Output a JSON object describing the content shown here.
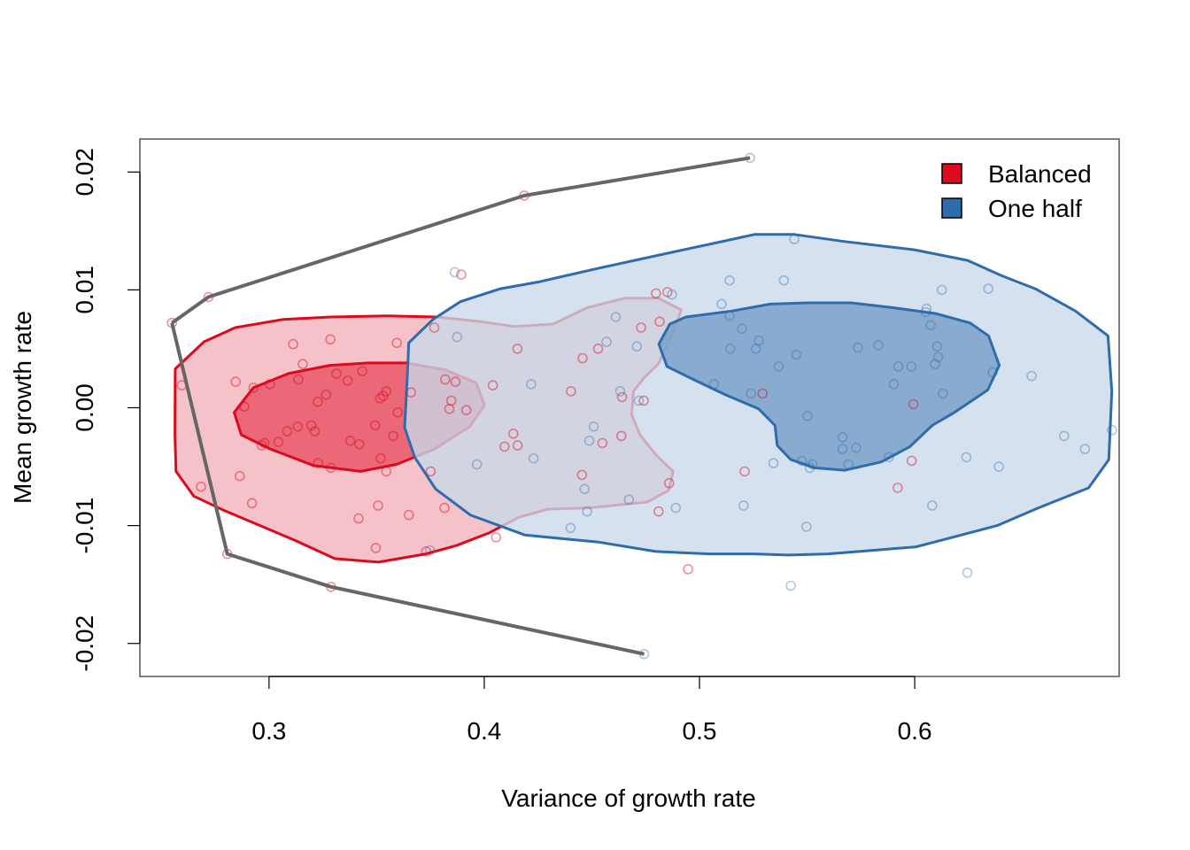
{
  "chart_data": {
    "type": "scatter",
    "title": "",
    "xlabel": "Variance of growth rate",
    "ylabel": "Mean growth rate",
    "xlim": [
      0.24,
      0.695
    ],
    "ylim": [
      -0.0228,
      0.0228
    ],
    "x_ticks": [
      0.3,
      0.4,
      0.5,
      0.6
    ],
    "x_tick_labels": [
      "0.3",
      "0.4",
      "0.5",
      "0.6"
    ],
    "y_ticks": [
      -0.02,
      -0.01,
      0.0,
      0.01,
      0.02
    ],
    "y_tick_labels": [
      "-0.02",
      "-0.01",
      "0.00",
      "0.01",
      "0.02"
    ],
    "grid": false,
    "legend_position": "top-right",
    "colors": {
      "balanced": "#DC0A1E",
      "balanced_fill": "#F6BFC6",
      "balanced_core": "#E8586A",
      "one_half": "#2F6CAC",
      "one_half_fill": "#C9D8E9",
      "one_half_core": "#779FC9",
      "frontier": "#666666",
      "axis": "#555555"
    },
    "series": [
      {
        "name": "Balanced",
        "color": "#DC0A1E",
        "points": [
          [
            0.2549,
            0.0072
          ],
          [
            0.2719,
            0.0094
          ],
          [
            0.3285,
            0.0058
          ],
          [
            0.3433,
            0.0031
          ],
          [
            0.3365,
            0.0023
          ],
          [
            0.3112,
            0.0054
          ],
          [
            0.3157,
            0.0037
          ],
          [
            0.3313,
            0.0029
          ],
          [
            0.3265,
            0.0011
          ],
          [
            0.3227,
            0.0005
          ],
          [
            0.3136,
            0.0024
          ],
          [
            0.3004,
            0.002
          ],
          [
            0.2928,
            0.0017
          ],
          [
            0.2845,
            0.0022
          ],
          [
            0.2595,
            0.0019
          ],
          [
            0.2885,
            0.0001
          ],
          [
            0.2978,
            -0.003
          ],
          [
            0.3044,
            -0.0029
          ],
          [
            0.3084,
            -0.002
          ],
          [
            0.3133,
            -0.0016
          ],
          [
            0.3197,
            -0.0015
          ],
          [
            0.3212,
            -0.002
          ],
          [
            0.3228,
            -0.0047
          ],
          [
            0.3287,
            -0.0051
          ],
          [
            0.3377,
            -0.0028
          ],
          [
            0.342,
            -0.0031
          ],
          [
            0.3493,
            -0.0015
          ],
          [
            0.3519,
            -0.0043
          ],
          [
            0.3545,
            -0.0054
          ],
          [
            0.3577,
            -0.0024
          ],
          [
            0.3598,
            -0.0004
          ],
          [
            0.3516,
            0.0008
          ],
          [
            0.3531,
            0.001
          ],
          [
            0.3545,
            0.0014
          ],
          [
            0.3594,
            0.0055
          ],
          [
            0.3768,
            0.0068
          ],
          [
            0.3819,
            0.0024
          ],
          [
            0.3866,
            0.0022
          ],
          [
            0.3847,
            0.0006
          ],
          [
            0.3838,
            -0.0001
          ],
          [
            0.3917,
            -0.0002
          ],
          [
            0.3815,
            -0.0085
          ],
          [
            0.373,
            -0.0122
          ],
          [
            0.3496,
            -0.0119
          ],
          [
            0.3507,
            -0.0083
          ],
          [
            0.3416,
            -0.0094
          ],
          [
            0.3288,
            -0.0152
          ],
          [
            0.2806,
            -0.0124
          ],
          [
            0.2684,
            -0.0067
          ],
          [
            0.2864,
            -0.0058
          ],
          [
            0.2921,
            -0.0081
          ],
          [
            0.2966,
            -0.0032
          ],
          [
            0.365,
            -0.0091
          ],
          [
            0.3751,
            -0.0054
          ],
          [
            0.404,
            0.0019
          ],
          [
            0.4154,
            0.005
          ],
          [
            0.4094,
            -0.0033
          ],
          [
            0.4135,
            -0.0022
          ],
          [
            0.4155,
            -0.0032
          ],
          [
            0.4055,
            -0.011
          ],
          [
            0.4403,
            0.0014
          ],
          [
            0.4457,
            0.0042
          ],
          [
            0.4529,
            0.005
          ],
          [
            0.4454,
            -0.0057
          ],
          [
            0.4549,
            -0.003
          ],
          [
            0.4637,
            -0.0024
          ],
          [
            0.4729,
            0.0068
          ],
          [
            0.4798,
            0.0097
          ],
          [
            0.4851,
            0.0098
          ],
          [
            0.4815,
            0.0073
          ],
          [
            0.4741,
            0.0006
          ],
          [
            0.4859,
            -0.0064
          ],
          [
            0.481,
            -0.0088
          ],
          [
            0.4947,
            -0.0137
          ],
          [
            0.4186,
            0.018
          ],
          [
            0.3893,
            0.0113
          ],
          [
            0.521,
            -0.0054
          ],
          [
            0.5293,
            0.0012
          ],
          [
            0.5921,
            -0.0068
          ],
          [
            0.5986,
            -0.0045
          ],
          [
            0.5994,
            0.0003
          ],
          [
            0.366,
            0.0013
          ],
          [
            0.464,
            0.0009
          ]
        ]
      },
      {
        "name": "One half",
        "color": "#2F6CAC",
        "points": [
          [
            0.5235,
            0.0212
          ],
          [
            0.4743,
            -0.0209
          ],
          [
            0.3863,
            0.0115
          ],
          [
            0.3874,
            0.006
          ],
          [
            0.3966,
            -0.0048
          ],
          [
            0.3748,
            -0.0121
          ],
          [
            0.4218,
            0.002
          ],
          [
            0.4229,
            -0.0043
          ],
          [
            0.4401,
            -0.0102
          ],
          [
            0.4466,
            -0.0069
          ],
          [
            0.4478,
            -0.0088
          ],
          [
            0.4488,
            -0.0028
          ],
          [
            0.4509,
            -0.0016
          ],
          [
            0.4568,
            0.0056
          ],
          [
            0.4611,
            0.0077
          ],
          [
            0.4632,
            0.0014
          ],
          [
            0.4672,
            -0.0078
          ],
          [
            0.4709,
            0.0052
          ],
          [
            0.4718,
            0.0006
          ],
          [
            0.4872,
            0.0096
          ],
          [
            0.489,
            -0.0085
          ],
          [
            0.5067,
            0.002
          ],
          [
            0.5103,
            0.0088
          ],
          [
            0.514,
            0.0078
          ],
          [
            0.514,
            0.0108
          ],
          [
            0.5143,
            0.005
          ],
          [
            0.5198,
            0.0067
          ],
          [
            0.5205,
            -0.0083
          ],
          [
            0.5262,
            0.005
          ],
          [
            0.5276,
            0.0057
          ],
          [
            0.5344,
            -0.0047
          ],
          [
            0.5368,
            0.0035
          ],
          [
            0.5392,
            0.0108
          ],
          [
            0.5424,
            -0.0151
          ],
          [
            0.544,
            0.0143
          ],
          [
            0.545,
            0.0045
          ],
          [
            0.5475,
            -0.0045
          ],
          [
            0.5497,
            -0.0101
          ],
          [
            0.5502,
            -0.0007
          ],
          [
            0.5513,
            -0.0051
          ],
          [
            0.5665,
            -0.0035
          ],
          [
            0.5665,
            -0.0025
          ],
          [
            0.5692,
            -0.0048
          ],
          [
            0.5728,
            -0.0034
          ],
          [
            0.5736,
            0.0051
          ],
          [
            0.5831,
            0.0053
          ],
          [
            0.588,
            -0.0042
          ],
          [
            0.5903,
            0.002
          ],
          [
            0.5924,
            0.0035
          ],
          [
            0.5985,
            0.0035
          ],
          [
            0.6051,
            0.0081
          ],
          [
            0.6055,
            0.0084
          ],
          [
            0.6074,
            0.007
          ],
          [
            0.6081,
            -0.0083
          ],
          [
            0.6095,
            0.0037
          ],
          [
            0.6104,
            0.0052
          ],
          [
            0.6109,
            0.0043
          ],
          [
            0.6126,
            0.01
          ],
          [
            0.6131,
            0.0012
          ],
          [
            0.624,
            -0.0042
          ],
          [
            0.6245,
            -0.014
          ],
          [
            0.6342,
            0.0101
          ],
          [
            0.6362,
            0.003
          ],
          [
            0.6391,
            -0.005
          ],
          [
            0.6543,
            0.0027
          ],
          [
            0.6694,
            -0.0024
          ],
          [
            0.6791,
            -0.0035
          ],
          [
            0.6917,
            -0.0019
          ],
          [
            0.5239,
            0.0012
          ],
          [
            0.5525,
            -0.0048
          ]
        ]
      }
    ],
    "contours": [
      {
        "series": "Balanced",
        "level": "outer",
        "points": [
          [
            0.2564,
            0.0033
          ],
          [
            0.2698,
            0.0056
          ],
          [
            0.2843,
            0.0068
          ],
          [
            0.3067,
            0.0075
          ],
          [
            0.3286,
            0.0077
          ],
          [
            0.3546,
            0.0078
          ],
          [
            0.3779,
            0.0077
          ],
          [
            0.3985,
            0.0073
          ],
          [
            0.4137,
            0.0069
          ],
          [
            0.432,
            0.0071
          ],
          [
            0.4479,
            0.0085
          ],
          [
            0.4653,
            0.0093
          ],
          [
            0.4808,
            0.0093
          ],
          [
            0.4916,
            0.0083
          ],
          [
            0.4855,
            0.0055
          ],
          [
            0.4808,
            0.0037
          ],
          [
            0.4741,
            0.0025
          ],
          [
            0.4693,
            0.0014
          ],
          [
            0.4685,
            -0.0006
          ],
          [
            0.4723,
            -0.0023
          ],
          [
            0.4797,
            -0.004
          ],
          [
            0.4878,
            -0.0054
          ],
          [
            0.4857,
            -0.007
          ],
          [
            0.4758,
            -0.008
          ],
          [
            0.4487,
            -0.0085
          ],
          [
            0.4296,
            -0.0086
          ],
          [
            0.416,
            -0.0093
          ],
          [
            0.4025,
            -0.0106
          ],
          [
            0.387,
            -0.0117
          ],
          [
            0.3729,
            -0.0124
          ],
          [
            0.3508,
            -0.0131
          ],
          [
            0.3305,
            -0.0128
          ],
          [
            0.3126,
            -0.0113
          ],
          [
            0.2945,
            -0.0099
          ],
          [
            0.2789,
            -0.0087
          ],
          [
            0.265,
            -0.0075
          ],
          [
            0.2568,
            -0.0054
          ],
          [
            0.2563,
            -0.0023
          ],
          [
            0.2564,
            0.0033
          ]
        ]
      },
      {
        "series": "Balanced",
        "level": "inner",
        "points": [
          [
            0.2838,
            -0.0004
          ],
          [
            0.2927,
            0.0017
          ],
          [
            0.309,
            0.0029
          ],
          [
            0.3283,
            0.0036
          ],
          [
            0.3461,
            0.0038
          ],
          [
            0.3639,
            0.0038
          ],
          [
            0.3821,
            0.0032
          ],
          [
            0.3963,
            0.0021
          ],
          [
            0.4001,
            0.0002
          ],
          [
            0.3932,
            -0.0016
          ],
          [
            0.3769,
            -0.0035
          ],
          [
            0.3594,
            -0.0048
          ],
          [
            0.3426,
            -0.0054
          ],
          [
            0.3206,
            -0.0049
          ],
          [
            0.3006,
            -0.0035
          ],
          [
            0.2871,
            -0.0023
          ],
          [
            0.2838,
            -0.0004
          ]
        ]
      },
      {
        "series": "One half",
        "level": "outer",
        "points": [
          [
            0.3649,
            0.0055
          ],
          [
            0.3762,
            0.0075
          ],
          [
            0.3889,
            0.009
          ],
          [
            0.4075,
            0.0101
          ],
          [
            0.4259,
            0.0107
          ],
          [
            0.4522,
            0.0118
          ],
          [
            0.4823,
            0.013
          ],
          [
            0.5129,
            0.0142
          ],
          [
            0.5255,
            0.0147
          ],
          [
            0.5441,
            0.0147
          ],
          [
            0.5675,
            0.0141
          ],
          [
            0.5999,
            0.0134
          ],
          [
            0.6246,
            0.0125
          ],
          [
            0.6404,
            0.0112
          ],
          [
            0.656,
            0.0101
          ],
          [
            0.6747,
            0.0082
          ],
          [
            0.6898,
            0.0061
          ],
          [
            0.6916,
            0.0014
          ],
          [
            0.6902,
            -0.0044
          ],
          [
            0.6808,
            -0.0068
          ],
          [
            0.6575,
            -0.0085
          ],
          [
            0.6383,
            -0.01
          ],
          [
            0.6196,
            -0.0109
          ],
          [
            0.6007,
            -0.0118
          ],
          [
            0.5804,
            -0.0121
          ],
          [
            0.5596,
            -0.0124
          ],
          [
            0.5416,
            -0.0125
          ],
          [
            0.5255,
            -0.0124
          ],
          [
            0.5047,
            -0.0124
          ],
          [
            0.4798,
            -0.0122
          ],
          [
            0.4532,
            -0.0114
          ],
          [
            0.4189,
            -0.0108
          ],
          [
            0.3935,
            -0.0091
          ],
          [
            0.3774,
            -0.0069
          ],
          [
            0.3677,
            -0.0042
          ],
          [
            0.363,
            -0.0017
          ],
          [
            0.3644,
            0.0032
          ],
          [
            0.3649,
            0.0055
          ]
        ]
      },
      {
        "series": "One half",
        "level": "inner",
        "points": [
          [
            0.4811,
            0.0054
          ],
          [
            0.4862,
            0.0071
          ],
          [
            0.4937,
            0.0077
          ],
          [
            0.5149,
            0.0082
          ],
          [
            0.533,
            0.0088
          ],
          [
            0.5504,
            0.0089
          ],
          [
            0.5704,
            0.0089
          ],
          [
            0.5895,
            0.0085
          ],
          [
            0.6095,
            0.008
          ],
          [
            0.6257,
            0.0072
          ],
          [
            0.6343,
            0.0061
          ],
          [
            0.6393,
            0.0036
          ],
          [
            0.6339,
            0.0015
          ],
          [
            0.6185,
            -0.0004
          ],
          [
            0.6081,
            -0.0015
          ],
          [
            0.5978,
            -0.0033
          ],
          [
            0.5845,
            -0.0046
          ],
          [
            0.5676,
            -0.0053
          ],
          [
            0.5535,
            -0.0051
          ],
          [
            0.5424,
            -0.0044
          ],
          [
            0.5361,
            -0.0032
          ],
          [
            0.5351,
            -0.0015
          ],
          [
            0.5275,
            -0.0001
          ],
          [
            0.5121,
            0.0011
          ],
          [
            0.4972,
            0.0024
          ],
          [
            0.4849,
            0.0035
          ],
          [
            0.4811,
            0.0054
          ]
        ]
      }
    ],
    "frontier_lines": [
      [
        [
          0.2549,
          0.0072
        ],
        [
          0.2719,
          0.0094
        ],
        [
          0.4186,
          0.018
        ],
        [
          0.5235,
          0.0212
        ]
      ],
      [
        [
          0.2549,
          0.0072
        ],
        [
          0.2806,
          -0.0124
        ],
        [
          0.3288,
          -0.0152
        ],
        [
          0.4743,
          -0.0209
        ]
      ]
    ]
  }
}
